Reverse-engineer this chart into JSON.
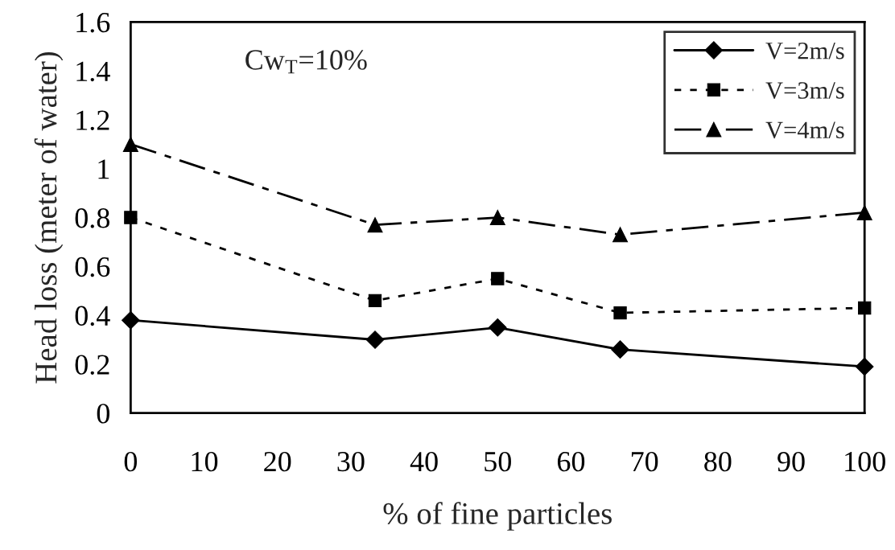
{
  "chart_data": {
    "type": "line",
    "xlabel": "% of fine particles",
    "ylabel": "Head loss (meter of water)",
    "annotations": [
      "Cw$_{T}$=10%"
    ],
    "x": [
      0,
      33.3,
      50,
      66.7,
      100
    ],
    "series": [
      {
        "name": "V=2m/s",
        "color": "#000000",
        "marker": "diamond",
        "line_style": "solid",
        "values": [
          0.38,
          0.3,
          0.35,
          0.26,
          0.19
        ]
      },
      {
        "name": "V=3m/s",
        "color": "#000000",
        "marker": "square",
        "line_style": "dotted",
        "values": [
          0.8,
          0.46,
          0.55,
          0.41,
          0.43
        ]
      },
      {
        "name": "V=4m/s",
        "color": "#000000",
        "marker": "triangle",
        "line_style": "dashed",
        "values": [
          1.1,
          0.77,
          0.8,
          0.73,
          0.82
        ]
      }
    ],
    "xlim": [
      0,
      100
    ],
    "xticks": [
      0,
      10,
      20,
      30,
      40,
      50,
      60,
      70,
      80,
      90,
      100
    ],
    "ylim": [
      0,
      1.6
    ],
    "yticks": [
      0,
      0.2,
      0.4,
      0.6,
      0.8,
      1,
      1.2,
      1.4,
      1.6
    ],
    "grid": false,
    "legend": "top right"
  }
}
